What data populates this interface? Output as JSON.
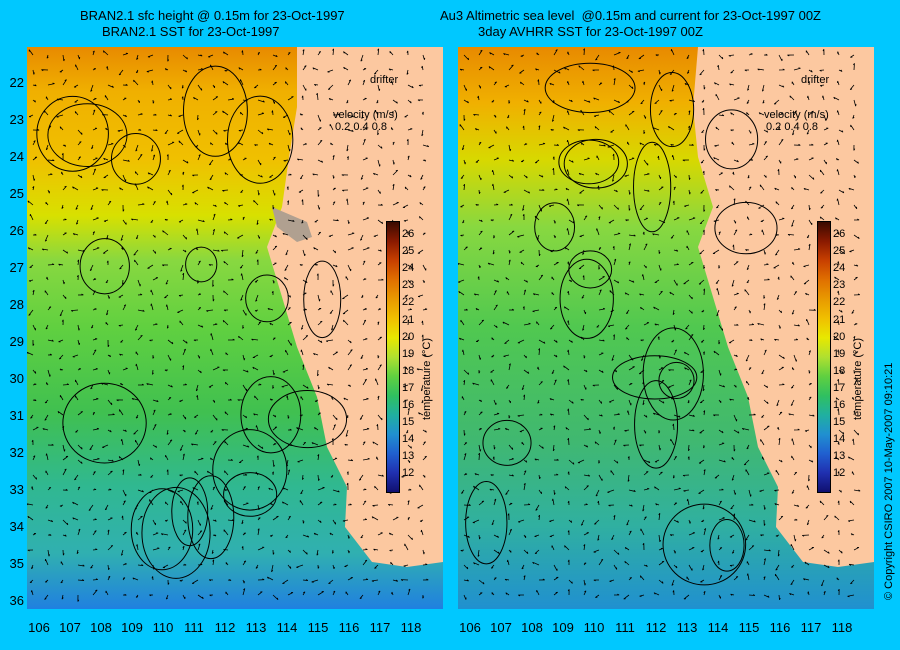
{
  "left_panel": {
    "title_line1": "BRAN2.1 sfc height @ 0.15m for 23-Oct-1997",
    "title_line2": "BRAN2.1 SST for 23-Oct-1997"
  },
  "right_panel": {
    "title_line1": "Au3 Altimetric sea level  @0.15m and current for 23-Oct-1997 00Z",
    "title_line2": "3day AVHRR SST for 23-Oct-1997 00Z"
  },
  "legend": {
    "drifter_label": "drifter",
    "velocity_label": "velocity (m/s)",
    "velocity_values": "0.2 0.4 0.8"
  },
  "colorbar": {
    "title": "temperature (°C)",
    "ticks": [
      "26",
      "25",
      "24",
      "23",
      "22",
      "21",
      "20",
      "19",
      "18",
      "17",
      "16",
      "15",
      "14",
      "13",
      "12"
    ],
    "colors": [
      "#3a0a00",
      "#8a1a00",
      "#c84000",
      "#e07000",
      "#e89a00",
      "#f0c000",
      "#e8e800",
      "#b0e030",
      "#60d040",
      "#30c060",
      "#20b0a0",
      "#2090d0",
      "#2060d0",
      "#2030b0",
      "#101070"
    ]
  },
  "y_axis_labels": [
    "22",
    "23",
    "24",
    "25",
    "26",
    "27",
    "28",
    "29",
    "30",
    "31",
    "32",
    "33",
    "34",
    "35",
    "36"
  ],
  "x_axis_labels": [
    "106",
    "107",
    "108",
    "109",
    "110",
    "111",
    "112",
    "113",
    "114",
    "115",
    "116",
    "117",
    "118"
  ],
  "copyright": "© Copyright CSIRO 2007   10-May-2007 09:10:21"
}
